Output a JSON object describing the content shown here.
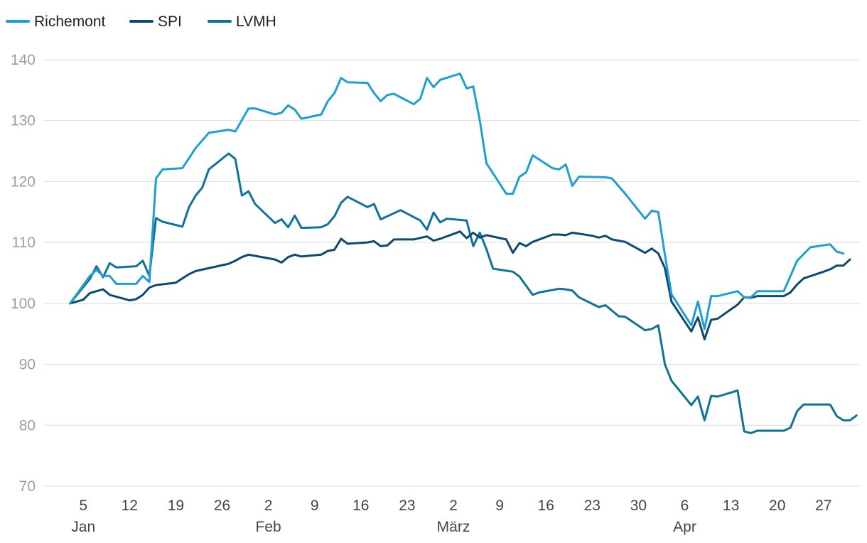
{
  "chart_data": {
    "type": "line",
    "title": "",
    "xlabel": "",
    "ylabel": "",
    "ylim": [
      70,
      140
    ],
    "yticks": [
      70,
      80,
      90,
      100,
      110,
      120,
      130,
      140
    ],
    "xlim": [
      1,
      120
    ],
    "grid": true,
    "legend_position": "top-left",
    "x_ticks": [
      {
        "x": 5,
        "label": "5"
      },
      {
        "x": 12,
        "label": "12"
      },
      {
        "x": 19,
        "label": "19"
      },
      {
        "x": 26,
        "label": "26"
      },
      {
        "x": 33,
        "label": "2"
      },
      {
        "x": 40,
        "label": "9"
      },
      {
        "x": 47,
        "label": "16"
      },
      {
        "x": 54,
        "label": "23"
      },
      {
        "x": 61,
        "label": "2"
      },
      {
        "x": 68,
        "label": "9"
      },
      {
        "x": 75,
        "label": "16"
      },
      {
        "x": 82,
        "label": "23"
      },
      {
        "x": 89,
        "label": "30"
      },
      {
        "x": 96,
        "label": "6"
      },
      {
        "x": 103,
        "label": "13"
      },
      {
        "x": 110,
        "label": "20"
      },
      {
        "x": 117,
        "label": "27"
      }
    ],
    "month_labels": [
      {
        "x": 5,
        "label": "Jan"
      },
      {
        "x": 33,
        "label": "Feb"
      },
      {
        "x": 61,
        "label": "März"
      },
      {
        "x": 96,
        "label": "Apr"
      }
    ],
    "series": [
      {
        "name": "Richemont",
        "color": "#1f9fd0",
        "points": [
          [
            3,
            100
          ],
          [
            6,
            104.5
          ],
          [
            7,
            105.5
          ],
          [
            8,
            104.5
          ],
          [
            9,
            104.5
          ],
          [
            10,
            103.2
          ],
          [
            11,
            103.2
          ],
          [
            12,
            103.2
          ],
          [
            13,
            103.2
          ],
          [
            14,
            104.5
          ],
          [
            15,
            103.5
          ],
          [
            16,
            120.5
          ],
          [
            17,
            122
          ],
          [
            20,
            122.2
          ],
          [
            22,
            125.5
          ],
          [
            24,
            128
          ],
          [
            27,
            128.5
          ],
          [
            28,
            128.2
          ],
          [
            30,
            132
          ],
          [
            31,
            132
          ],
          [
            34,
            131
          ],
          [
            35,
            131.3
          ],
          [
            36,
            132.5
          ],
          [
            37,
            131.8
          ],
          [
            38,
            130.3
          ],
          [
            41,
            131
          ],
          [
            42,
            133.2
          ],
          [
            43,
            134.5
          ],
          [
            44,
            137
          ],
          [
            45,
            136.3
          ],
          [
            48,
            136.2
          ],
          [
            49,
            134.5
          ],
          [
            50,
            133.2
          ],
          [
            51,
            134.2
          ],
          [
            52,
            134.4
          ],
          [
            55,
            132.7
          ],
          [
            56,
            133.6
          ],
          [
            57,
            137
          ],
          [
            58,
            135.5
          ],
          [
            59,
            136.7
          ],
          [
            62,
            137.7
          ],
          [
            63,
            135.3
          ],
          [
            64,
            135.6
          ],
          [
            65,
            130
          ],
          [
            66,
            123
          ],
          [
            69,
            118
          ],
          [
            70,
            118
          ],
          [
            71,
            120.8
          ],
          [
            72,
            121.5
          ],
          [
            73,
            124.3
          ],
          [
            76,
            122.2
          ],
          [
            77,
            122
          ],
          [
            78,
            122.8
          ],
          [
            79,
            119.3
          ],
          [
            80,
            120.8
          ],
          [
            84,
            120.7
          ],
          [
            85,
            120.5
          ],
          [
            87,
            118
          ],
          [
            90,
            113.9
          ],
          [
            91,
            115.2
          ],
          [
            92,
            115
          ],
          [
            93,
            108
          ],
          [
            94,
            101.5
          ],
          [
            97,
            96.4
          ],
          [
            98,
            100.3
          ],
          [
            99,
            95.8
          ],
          [
            100,
            101.2
          ],
          [
            101,
            101.2
          ],
          [
            104,
            102
          ],
          [
            105,
            101
          ],
          [
            106,
            101
          ],
          [
            107,
            102
          ],
          [
            111,
            102
          ],
          [
            112,
            104.5
          ],
          [
            113,
            107
          ],
          [
            115,
            109.2
          ],
          [
            118,
            109.7
          ],
          [
            119,
            108.5
          ],
          [
            120,
            108.2
          ]
        ]
      },
      {
        "name": "SPI",
        "color": "#0d4a6f",
        "points": [
          [
            3,
            100
          ],
          [
            5,
            100.6
          ],
          [
            6,
            101.7
          ],
          [
            8,
            102.3
          ],
          [
            9,
            101.4
          ],
          [
            12,
            100.5
          ],
          [
            13,
            100.7
          ],
          [
            14,
            101.4
          ],
          [
            15,
            102.6
          ],
          [
            16,
            103
          ],
          [
            19,
            103.4
          ],
          [
            21,
            104.8
          ],
          [
            22,
            105.3
          ],
          [
            27,
            106.5
          ],
          [
            28,
            107
          ],
          [
            29,
            107.6
          ],
          [
            30,
            108
          ],
          [
            31,
            107.8
          ],
          [
            34,
            107.2
          ],
          [
            35,
            106.7
          ],
          [
            36,
            107.6
          ],
          [
            37,
            108
          ],
          [
            38,
            107.7
          ],
          [
            41,
            108
          ],
          [
            42,
            108.6
          ],
          [
            43,
            108.8
          ],
          [
            44,
            110.6
          ],
          [
            45,
            109.8
          ],
          [
            48,
            110
          ],
          [
            49,
            110.2
          ],
          [
            50,
            109.4
          ],
          [
            51,
            109.5
          ],
          [
            52,
            110.5
          ],
          [
            55,
            110.5
          ],
          [
            57,
            111
          ],
          [
            58,
            110.3
          ],
          [
            59,
            110.6
          ],
          [
            62,
            111.8
          ],
          [
            63,
            110.7
          ],
          [
            64,
            111.6
          ],
          [
            65,
            110.8
          ],
          [
            66,
            111.2
          ],
          [
            69,
            110.5
          ],
          [
            70,
            108.3
          ],
          [
            71,
            109.9
          ],
          [
            72,
            109.4
          ],
          [
            73,
            110.1
          ],
          [
            76,
            111.3
          ],
          [
            77,
            111.3
          ],
          [
            78,
            111.2
          ],
          [
            79,
            111.6
          ],
          [
            82,
            111.1
          ],
          [
            83,
            110.8
          ],
          [
            84,
            111.1
          ],
          [
            85,
            110.5
          ],
          [
            87,
            110.1
          ],
          [
            90,
            108.3
          ],
          [
            91,
            109
          ],
          [
            92,
            108.2
          ],
          [
            93,
            105.8
          ],
          [
            94,
            100.3
          ],
          [
            97,
            95.4
          ],
          [
            98,
            97.7
          ],
          [
            99,
            94.1
          ],
          [
            100,
            97.3
          ],
          [
            101,
            97.5
          ],
          [
            104,
            99.8
          ],
          [
            105,
            101
          ],
          [
            106,
            100.9
          ],
          [
            107,
            101.2
          ],
          [
            111,
            101.2
          ],
          [
            112,
            101.8
          ],
          [
            113,
            103.1
          ],
          [
            114,
            104.1
          ],
          [
            117,
            105.2
          ],
          [
            118,
            105.6
          ],
          [
            119,
            106.2
          ],
          [
            120,
            106.2
          ],
          [
            121,
            107.2
          ]
        ]
      },
      {
        "name": "LVMH",
        "color": "#0e7497",
        "points": [
          [
            3,
            100
          ],
          [
            6,
            104
          ],
          [
            7,
            106.1
          ],
          [
            8,
            104.3
          ],
          [
            9,
            106.6
          ],
          [
            10,
            105.9
          ],
          [
            13,
            106.1
          ],
          [
            14,
            107
          ],
          [
            15,
            104.5
          ],
          [
            16,
            114
          ],
          [
            17,
            113.4
          ],
          [
            20,
            112.6
          ],
          [
            21,
            115.8
          ],
          [
            22,
            117.7
          ],
          [
            23,
            119
          ],
          [
            24,
            122
          ],
          [
            27,
            124.6
          ],
          [
            28,
            123.7
          ],
          [
            29,
            117.7
          ],
          [
            30,
            118.4
          ],
          [
            31,
            116.3
          ],
          [
            34,
            113.2
          ],
          [
            35,
            113.8
          ],
          [
            36,
            112.5
          ],
          [
            37,
            114.4
          ],
          [
            38,
            112.4
          ],
          [
            41,
            112.5
          ],
          [
            42,
            113
          ],
          [
            43,
            114.3
          ],
          [
            44,
            116.5
          ],
          [
            45,
            117.5
          ],
          [
            48,
            115.8
          ],
          [
            49,
            116.3
          ],
          [
            50,
            113.8
          ],
          [
            53,
            115.3
          ],
          [
            56,
            113.6
          ],
          [
            57,
            112.1
          ],
          [
            58,
            114.9
          ],
          [
            59,
            113.3
          ],
          [
            60,
            113.9
          ],
          [
            63,
            113.6
          ],
          [
            64,
            109.4
          ],
          [
            65,
            111.6
          ],
          [
            66,
            108.9
          ],
          [
            67,
            105.7
          ],
          [
            70,
            105.2
          ],
          [
            71,
            104.4
          ],
          [
            73,
            101.4
          ],
          [
            74,
            101.8
          ],
          [
            77,
            102.4
          ],
          [
            78,
            102.3
          ],
          [
            79,
            102.1
          ],
          [
            80,
            101
          ],
          [
            83,
            99.4
          ],
          [
            84,
            99.7
          ],
          [
            86,
            97.9
          ],
          [
            87,
            97.8
          ],
          [
            90,
            95.6
          ],
          [
            91,
            95.8
          ],
          [
            92,
            96.4
          ],
          [
            93,
            90
          ],
          [
            94,
            87.3
          ],
          [
            97,
            83.3
          ],
          [
            98,
            84.7
          ],
          [
            99,
            80.8
          ],
          [
            100,
            84.8
          ],
          [
            101,
            84.7
          ],
          [
            104,
            85.7
          ],
          [
            105,
            79
          ],
          [
            106,
            78.7
          ],
          [
            107,
            79.1
          ],
          [
            111,
            79.1
          ],
          [
            112,
            79.6
          ],
          [
            113,
            82.3
          ],
          [
            114,
            83.4
          ],
          [
            118,
            83.4
          ],
          [
            119,
            81.5
          ],
          [
            120,
            80.8
          ],
          [
            121,
            80.8
          ],
          [
            122,
            81.6
          ]
        ]
      }
    ]
  }
}
